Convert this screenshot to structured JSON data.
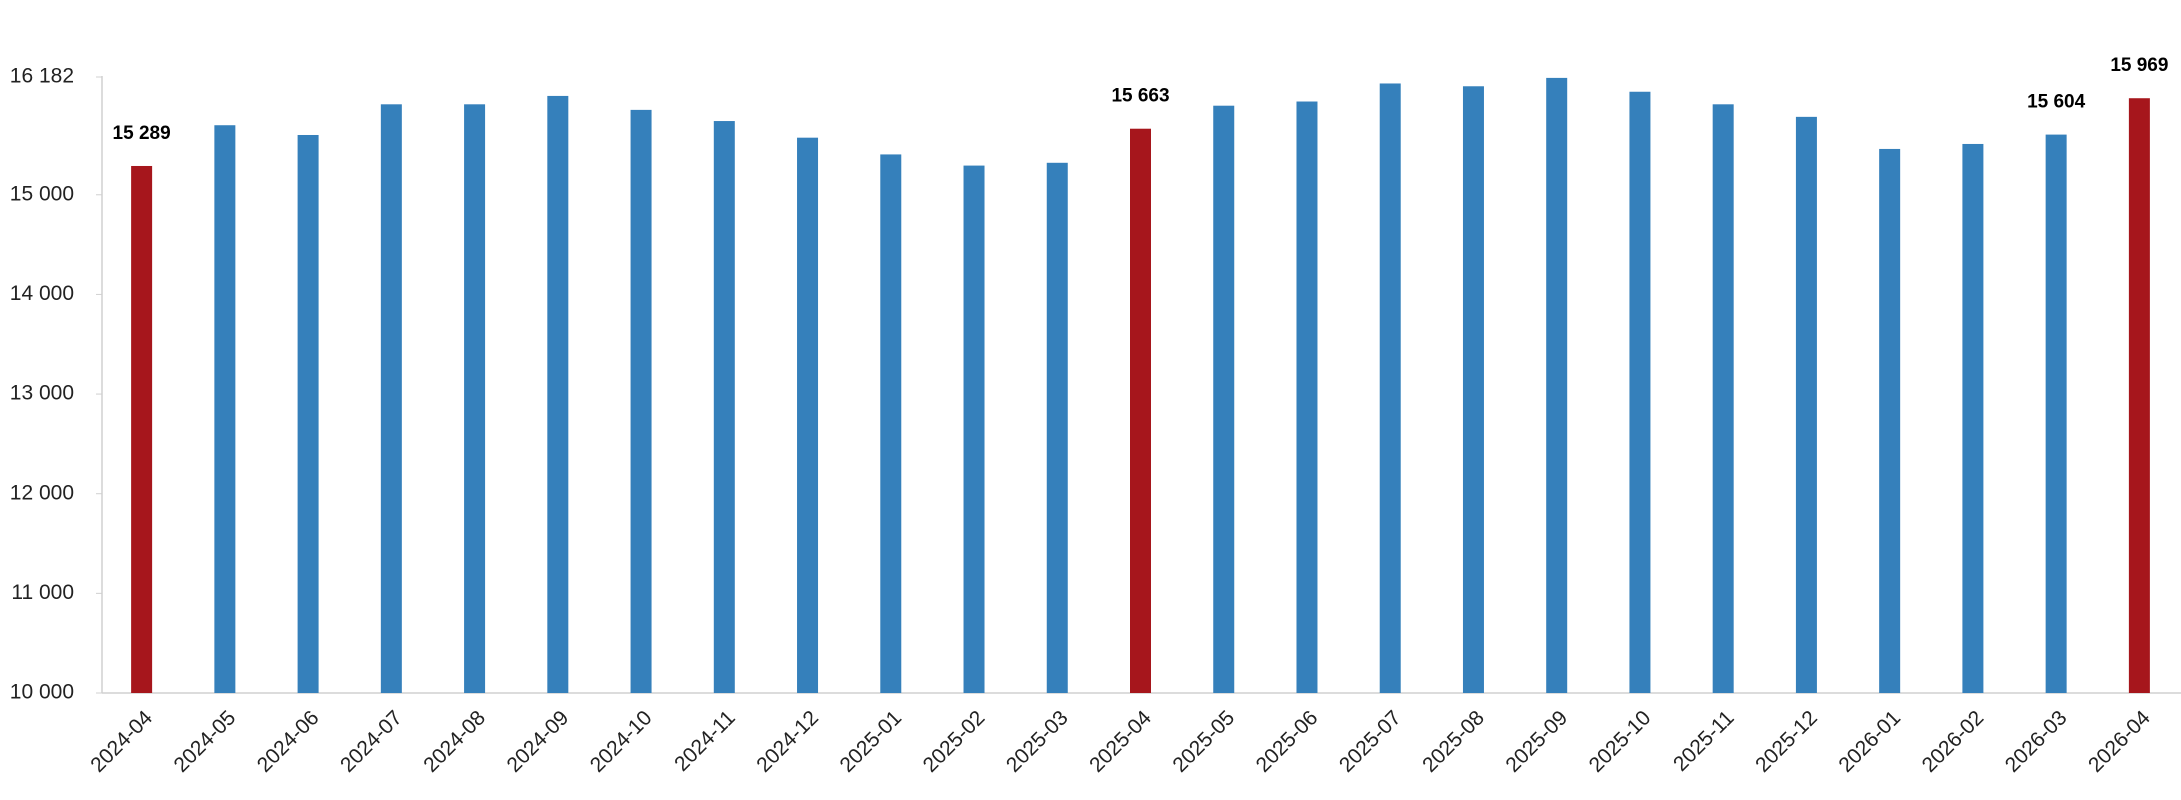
{
  "chart_data": {
    "type": "bar",
    "categories": [
      "2024-04",
      "2024-05",
      "2024-06",
      "2024-07",
      "2024-08",
      "2024-09",
      "2024-10",
      "2024-11",
      "2024-12",
      "2025-01",
      "2025-02",
      "2025-03",
      "2025-04",
      "2025-05",
      "2025-06",
      "2025-07",
      "2025-08",
      "2025-09",
      "2025-10",
      "2025-11",
      "2025-12",
      "2026-01",
      "2026-02",
      "2026-03",
      "2026-04"
    ],
    "values": [
      15289,
      15698,
      15600,
      15908,
      15908,
      15992,
      15852,
      15740,
      15573,
      15405,
      15293,
      15321,
      15663,
      15894,
      15936,
      16117,
      16089,
      16173,
      16034,
      15908,
      15782,
      15460,
      15510,
      15604,
      15969
    ],
    "value_labels": [
      "15 289",
      null,
      null,
      null,
      null,
      null,
      null,
      null,
      null,
      null,
      null,
      null,
      "15 663",
      null,
      null,
      null,
      null,
      null,
      null,
      null,
      null,
      null,
      null,
      "15 604",
      "15 969"
    ],
    "colors": [
      "#a6161c",
      "#3580bb",
      "#3580bb",
      "#3580bb",
      "#3580bb",
      "#3580bb",
      "#3580bb",
      "#3580bb",
      "#3580bb",
      "#3580bb",
      "#3580bb",
      "#3580bb",
      "#a6161c",
      "#3580bb",
      "#3580bb",
      "#3580bb",
      "#3580bb",
      "#3580bb",
      "#3580bb",
      "#3580bb",
      "#3580bb",
      "#3580bb",
      "#3580bb",
      "#3580bb",
      "#a6161c"
    ],
    "ylim": [
      10000,
      16182
    ],
    "yticks": [
      {
        "value": 10000,
        "label": "10 000"
      },
      {
        "value": 11000,
        "label": "11 000"
      },
      {
        "value": 12000,
        "label": "12 000"
      },
      {
        "value": 13000,
        "label": "13 000"
      },
      {
        "value": 14000,
        "label": "14 000"
      },
      {
        "value": 15000,
        "label": "15 000"
      },
      {
        "value": 16182,
        "label": "16 182"
      }
    ],
    "grid": false
  }
}
